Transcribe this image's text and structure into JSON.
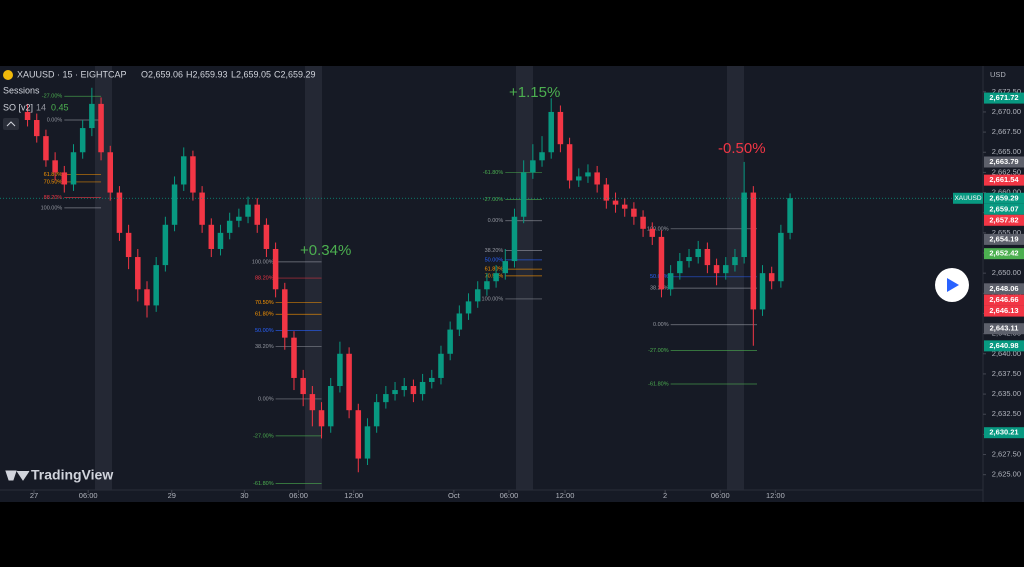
{
  "chart_data": {
    "type": "candlestick",
    "symbol": "XAUUSD · 15 · EIGHTCAP",
    "ohlc_labels": [
      "O2,659.06",
      "H2,659.93",
      "L2,659.05",
      "C2,659.29"
    ],
    "indicator_labels": [
      "Sessions",
      "SO [v2]",
      "14",
      "0.45"
    ],
    "currency": "USD",
    "watermark": "TradingView",
    "symbol_tag": "XAUUSD",
    "xlim": [
      0,
      107
    ],
    "ylim": [
      2623.1,
      2675.7
    ],
    "grid": false,
    "xticks": [
      {
        "value": 3.7,
        "label": "27"
      },
      {
        "value": 9.6,
        "label": "06:00"
      },
      {
        "value": 18.7,
        "label": "29"
      },
      {
        "value": 26.6,
        "label": "30"
      },
      {
        "value": 32.5,
        "label": "06:00"
      },
      {
        "value": 38.5,
        "label": "12:00"
      },
      {
        "value": 49.4,
        "label": "Oct"
      },
      {
        "value": 55.4,
        "label": "06:00"
      },
      {
        "value": 61.5,
        "label": "12:00"
      },
      {
        "value": 72.4,
        "label": "2"
      },
      {
        "value": 78.4,
        "label": "06:00"
      },
      {
        "value": 84.4,
        "label": "12:00"
      }
    ],
    "yticks": [
      {
        "value": 2625,
        "label": "2,625.00"
      },
      {
        "value": 2627.5,
        "label": "2,627.50"
      },
      {
        "value": 2630,
        "label": "2,630.00"
      },
      {
        "value": 2632.5,
        "label": "2,632.50"
      },
      {
        "value": 2635,
        "label": "2,635.00"
      },
      {
        "value": 2637.5,
        "label": "2,637.50"
      },
      {
        "value": 2640,
        "label": "2,640.00"
      },
      {
        "value": 2642.5,
        "label": "2,642.50"
      },
      {
        "value": 2645,
        "label": "2,645.00"
      },
      {
        "value": 2647.5,
        "label": "2,647.50"
      },
      {
        "value": 2650,
        "label": "2,650.00"
      },
      {
        "value": 2652.5,
        "label": "2,652.50"
      },
      {
        "value": 2655,
        "label": "2,655.00"
      },
      {
        "value": 2657.5,
        "label": "2,657.50"
      },
      {
        "value": 2660,
        "label": "2,660.00"
      },
      {
        "value": 2662.5,
        "label": "2,662.50"
      },
      {
        "value": 2665,
        "label": "2,665.00"
      },
      {
        "value": 2667.5,
        "label": "2,667.50"
      },
      {
        "value": 2670,
        "label": "2,670.00"
      },
      {
        "value": 2672.5,
        "label": "2,672.50"
      }
    ],
    "up_color": "#089981",
    "down_color": "#f23645",
    "series": [
      {
        "x": [
          3,
          4,
          5,
          6,
          7,
          8,
          9,
          10,
          11,
          12,
          13,
          14,
          15,
          16,
          17,
          18,
          19,
          20,
          21,
          22,
          23,
          24,
          25,
          26,
          27,
          28,
          29,
          30,
          31,
          32,
          33,
          34,
          35,
          36,
          37,
          38,
          39,
          40,
          41,
          42,
          43,
          44,
          45,
          46,
          47,
          48,
          49,
          50,
          51,
          52,
          53,
          54,
          55,
          56,
          57,
          58,
          59,
          60,
          61,
          62,
          63,
          64,
          65,
          66,
          67,
          68,
          69,
          70,
          71,
          72,
          73,
          74,
          75,
          76,
          77,
          78,
          79,
          80,
          81,
          82,
          83,
          84,
          85,
          86
        ],
        "open": [
          2670,
          2669,
          2667,
          2664,
          2662.5,
          2661,
          2665,
          2668,
          2671,
          2665,
          2660,
          2655,
          2652,
          2648,
          2646,
          2651,
          2656,
          2661,
          2664.5,
          2660,
          2656,
          2653,
          2655,
          2656.5,
          2657,
          2658.5,
          2656,
          2653,
          2648,
          2642,
          2637,
          2635,
          2633,
          2631,
          2636,
          2640,
          2633,
          2627,
          2631,
          2634,
          2635,
          2635.5,
          2636,
          2635,
          2636.5,
          2637,
          2640,
          2643,
          2645,
          2646.5,
          2648,
          2649,
          2650,
          2651.5,
          2657,
          2662.5,
          2664,
          2665,
          2670,
          2666,
          2661.5,
          2662,
          2662.5,
          2661,
          2659,
          2658.5,
          2658,
          2657,
          2655.5,
          2654.5,
          2648,
          2650,
          2651.5,
          2652,
          2653,
          2651,
          2650,
          2651,
          2652,
          2660,
          2645.5,
          2650,
          2649,
          2655
        ],
        "high": [
          2671,
          2669.8,
          2667.8,
          2665,
          2663.3,
          2666,
          2669,
          2673,
          2671.8,
          2665.8,
          2660.8,
          2656,
          2653,
          2649,
          2652,
          2657,
          2662,
          2665.6,
          2665.2,
          2660.8,
          2656.8,
          2656,
          2657.5,
          2658,
          2659.5,
          2659.3,
          2656.8,
          2653.8,
          2648.8,
          2642.8,
          2638,
          2636,
          2634,
          2637,
          2641.5,
          2640.8,
          2633.8,
          2632,
          2635,
          2636,
          2636.5,
          2637,
          2636.8,
          2637.5,
          2638,
          2641,
          2644,
          2646,
          2647.5,
          2649,
          2650,
          2651,
          2653,
          2658,
          2664,
          2666,
          2667,
          2671.7,
          2670.8,
          2666.8,
          2663,
          2663.5,
          2663.3,
          2661.8,
          2660,
          2659.3,
          2658.8,
          2657.8,
          2656.3,
          2655.3,
          2651,
          2652.5,
          2653,
          2654,
          2653.8,
          2651.8,
          2652,
          2653,
          2663.8,
          2660.8,
          2651,
          2650.8,
          2656,
          2659.9
        ],
        "low": [
          2668.2,
          2666.2,
          2663.2,
          2661.5,
          2660,
          2660.2,
          2664.2,
          2667,
          2664,
          2659,
          2654,
          2650.5,
          2646.5,
          2644.5,
          2645.2,
          2650.2,
          2655.2,
          2660.2,
          2659,
          2655,
          2652,
          2652.2,
          2654.2,
          2655.7,
          2656.2,
          2655,
          2652,
          2647,
          2640.5,
          2635.5,
          2633.5,
          2631,
          2629.5,
          2630.2,
          2635.2,
          2632,
          2625.3,
          2626.2,
          2630.2,
          2633.2,
          2634.2,
          2634.7,
          2634,
          2634.2,
          2635.7,
          2636.2,
          2639.2,
          2642.2,
          2644.2,
          2645.7,
          2647.2,
          2648.2,
          2649.2,
          2650.7,
          2656.2,
          2661.7,
          2663.2,
          2664.2,
          2665,
          2660.5,
          2660.7,
          2661.2,
          2660,
          2658,
          2657.5,
          2657,
          2656,
          2654.5,
          2653.5,
          2647,
          2647.2,
          2649.2,
          2650.7,
          2651.2,
          2650,
          2648.5,
          2649.2,
          2650.2,
          2651.2,
          2641,
          2644.7,
          2648,
          2648.2,
          2654.2
        ],
        "close": [
          2669,
          2667,
          2664,
          2662.5,
          2661,
          2665,
          2668,
          2671,
          2665,
          2660,
          2655,
          2652,
          2648,
          2646,
          2651,
          2656,
          2661,
          2664.5,
          2660,
          2656,
          2653,
          2655,
          2656.5,
          2657,
          2658.5,
          2656,
          2653,
          2648,
          2642,
          2637,
          2635,
          2633,
          2631,
          2636,
          2640,
          2633,
          2627,
          2631,
          2634,
          2635,
          2635.5,
          2636,
          2635,
          2636.5,
          2637,
          2640,
          2643,
          2645,
          2646.5,
          2648,
          2649,
          2650,
          2651.5,
          2657,
          2662.5,
          2664,
          2665,
          2670,
          2666,
          2661.5,
          2662,
          2662.5,
          2661,
          2659,
          2658.5,
          2658,
          2657,
          2655.5,
          2654.5,
          2648,
          2650,
          2651.5,
          2652,
          2653,
          2651,
          2650,
          2651,
          2652,
          2660,
          2645.5,
          2650,
          2649,
          2655,
          2659.3
        ]
      }
    ],
    "last_price": {
      "value": 2659.29,
      "label": "2,659.29",
      "color": "#089981"
    },
    "price_markers": [
      {
        "value": 2671.72,
        "label": "2,671.72",
        "color": "#089981"
      },
      {
        "value": 2663.79,
        "label": "2,663.79",
        "color": "#5d606b"
      },
      {
        "value": 2661.54,
        "label": "2,661.54",
        "color": "#f23645"
      },
      {
        "value": 2659.07,
        "label": "2,659.07",
        "color": "#089981"
      },
      {
        "value": 2657.82,
        "label": "2,657.82",
        "color": "#f23645"
      },
      {
        "value": 2654.19,
        "label": "2,654.19",
        "color": "#5d606b"
      },
      {
        "value": 2652.42,
        "label": "2,652.42",
        "color": "#4caf50"
      },
      {
        "value": 2648.06,
        "label": "2,648.06",
        "color": "#5d606b"
      },
      {
        "value": 2646.66,
        "label": "2,646.66",
        "color": "#f23645"
      },
      {
        "value": 2646.13,
        "label": "2,646.13",
        "color": "#f23645"
      },
      {
        "value": 2643.11,
        "label": "2,643.11",
        "color": "#5d606b"
      },
      {
        "value": 2640.98,
        "label": "2,640.98",
        "color": "#089981"
      },
      {
        "value": 2630.21,
        "label": "2,630.21",
        "color": "#089981"
      }
    ],
    "fib_blocks": [
      {
        "x": [
          7,
          11
        ],
        "price_0": 2669,
        "price_100": 2658.1,
        "levels": [
          {
            "value": -27,
            "label": "-27.00%",
            "color": "#4caf50"
          },
          {
            "value": 0,
            "label": "0.00%",
            "color": "#9598a1"
          },
          {
            "value": 61.8,
            "label": "61.80%",
            "color": "#ff9800"
          },
          {
            "value": 70.5,
            "label": "70.50%",
            "color": "#ff9800"
          },
          {
            "value": 88.2,
            "label": "88.20%",
            "color": "#f23645"
          },
          {
            "value": 100,
            "label": "100.00%",
            "color": "#9598a1"
          }
        ]
      },
      {
        "x": [
          30,
          35
        ],
        "price_0": 2634.4,
        "price_100": 2651.4,
        "levels": [
          {
            "value": 100,
            "label": "100.00%",
            "color": "#9598a1"
          },
          {
            "value": 88.2,
            "label": "88.20%",
            "color": "#f23645"
          },
          {
            "value": 70.5,
            "label": "70.50%",
            "color": "#ff9800"
          },
          {
            "value": 61.8,
            "label": "61.80%",
            "color": "#ff9800"
          },
          {
            "value": 50,
            "label": "50.00%",
            "color": "#2962ff"
          },
          {
            "value": 38.2,
            "label": "38.20%",
            "color": "#9598a1"
          },
          {
            "value": 0,
            "label": "0.00%",
            "color": "#9598a1"
          },
          {
            "value": -27,
            "label": "-27.00%",
            "color": "#4caf50"
          },
          {
            "value": -61.8,
            "label": "-61.80%",
            "color": "#4caf50"
          }
        ]
      },
      {
        "x": [
          55,
          59
        ],
        "price_0": 2656.5,
        "price_100": 2646.8,
        "levels": [
          {
            "value": -61.8,
            "label": "-61.80%",
            "color": "#4caf50"
          },
          {
            "value": -27,
            "label": "-27.00%",
            "color": "#4caf50"
          },
          {
            "value": 0,
            "label": "0.00%",
            "color": "#9598a1"
          },
          {
            "value": 38.2,
            "label": "38.20%",
            "color": "#9598a1"
          },
          {
            "value": 50,
            "label": "50.00%",
            "color": "#2962ff"
          },
          {
            "value": 61.8,
            "label": "61.80%",
            "color": "#ff9800"
          },
          {
            "value": 70.5,
            "label": "70.50%",
            "color": "#ff9800"
          },
          {
            "value": 100,
            "label": "100.00%",
            "color": "#9598a1"
          }
        ]
      },
      {
        "x": [
          73,
          82.4
        ],
        "price_0": 2643.6,
        "price_100": 2655.5,
        "levels": [
          {
            "value": 100,
            "label": "100.00%",
            "color": "#9598a1"
          },
          {
            "value": 50,
            "label": "50.00%",
            "color": "#2962ff"
          },
          {
            "value": 38.2,
            "label": "38.20%",
            "color": "#9598a1"
          },
          {
            "value": 0,
            "label": "0.00%",
            "color": "#9598a1"
          },
          {
            "value": -27,
            "label": "-27.00%",
            "color": "#4caf50"
          },
          {
            "value": -61.8,
            "label": "-61.80%",
            "color": "#4caf50"
          }
        ]
      }
    ],
    "annotations": [
      {
        "text": "+0.34%",
        "color": "#4caf50"
      },
      {
        "text": "+1.15%",
        "color": "#4caf50"
      },
      {
        "text": "-0.50%",
        "color": "#f23645"
      }
    ]
  }
}
